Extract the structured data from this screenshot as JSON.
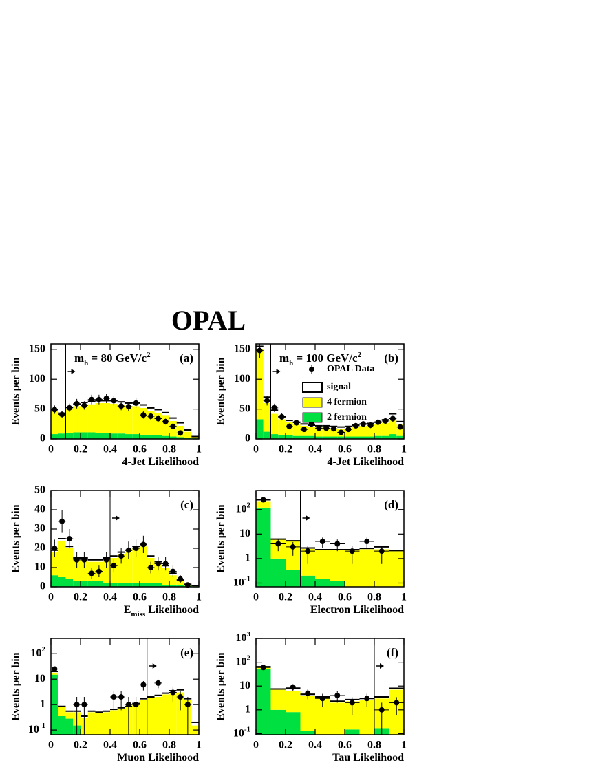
{
  "title": "OPAL",
  "chart_data": [
    {
      "type": "histogram",
      "panel_label": "(a)",
      "annotation": {
        "text": "m",
        "sub": "h",
        "rest": " = 80 GeV/c",
        "sup": "2"
      },
      "x_label": {
        "text": "4-Jet Likelihood"
      },
      "y_label": "Events per bin",
      "bins": [
        0,
        0.05,
        0.1,
        0.15,
        0.2,
        0.25,
        0.3,
        0.35,
        0.4,
        0.45,
        0.5,
        0.55,
        0.6,
        0.65,
        0.7,
        0.75,
        0.8,
        0.85,
        0.9,
        0.95,
        1
      ],
      "xlim": [
        0,
        1
      ],
      "xticks": [
        0,
        0.2,
        0.4,
        0.6,
        0.8,
        1
      ],
      "ylim": [
        0,
        159
      ],
      "yticks": [
        0,
        50,
        100,
        150
      ],
      "log_y": false,
      "cut": 0.1,
      "legend": false,
      "series": [
        {
          "name": "2 fermion",
          "color": "#00e040",
          "values": [
            8,
            9,
            10,
            11,
            11,
            11,
            10,
            10,
            9,
            9,
            8,
            8,
            7,
            7,
            6,
            5,
            4,
            3,
            2,
            1
          ]
        },
        {
          "name": "4 fermion",
          "color": "#ffff00",
          "values": [
            39,
            33,
            40,
            44,
            46,
            47,
            50,
            50,
            50,
            48,
            47,
            47,
            45,
            40,
            38,
            35,
            26,
            19,
            10,
            2
          ]
        },
        {
          "name": "signal",
          "color": "#ffffff",
          "outline": "#000000",
          "values": [
            2,
            1,
            3,
            3,
            4,
            5,
            4,
            4,
            5,
            5,
            5,
            5,
            5,
            5,
            5,
            4,
            5,
            5,
            3,
            1
          ]
        }
      ],
      "data": {
        "name": "OPAL Data",
        "values": [
          49,
          41,
          52,
          59,
          56,
          66,
          66,
          68,
          64,
          55,
          54,
          60,
          40,
          38,
          34,
          29,
          21,
          10,
          null,
          null
        ],
        "errors": [
          7,
          6,
          7,
          8,
          7,
          8,
          8,
          8,
          8,
          7,
          7,
          8,
          6,
          6,
          6,
          5,
          5,
          3,
          null,
          null
        ]
      }
    },
    {
      "type": "histogram",
      "panel_label": "(b)",
      "annotation": {
        "text": "m",
        "sub": "h",
        "rest": " = 100 GeV/c",
        "sup": "2"
      },
      "x_label": {
        "text": "4-Jet Likelihood"
      },
      "y_label": "Events per bin",
      "bins": [
        0,
        0.05,
        0.1,
        0.15,
        0.2,
        0.25,
        0.3,
        0.35,
        0.4,
        0.45,
        0.5,
        0.55,
        0.6,
        0.65,
        0.7,
        0.75,
        0.8,
        0.85,
        0.9,
        0.95,
        1
      ],
      "xlim": [
        0,
        1
      ],
      "xticks": [
        0,
        0.2,
        0.4,
        0.6,
        0.8,
        1
      ],
      "ylim": [
        0,
        159
      ],
      "yticks": [
        0,
        50,
        100,
        150
      ],
      "log_y": false,
      "cut": 0.1,
      "legend": true,
      "series": [
        {
          "name": "2 fermion",
          "color": "#00e040",
          "values": [
            33,
            12,
            8,
            7,
            6,
            5,
            5,
            5,
            4,
            4,
            4,
            4,
            4,
            4,
            4,
            4,
            5,
            5,
            8,
            5
          ]
        },
        {
          "name": "4 fermion",
          "color": "#ffff00",
          "values": [
            117,
            48,
            34,
            26,
            22,
            20,
            17,
            15,
            15,
            15,
            14,
            13,
            14,
            16,
            18,
            19,
            20,
            22,
            24,
            19
          ]
        },
        {
          "name": "signal",
          "color": "#ffffff",
          "outline": "#000000",
          "values": [
            5,
            10,
            6,
            4,
            3,
            3,
            3,
            3,
            3,
            3,
            3,
            3,
            3,
            3,
            3,
            3,
            3,
            5,
            10,
            5
          ]
        }
      ],
      "data": {
        "name": "OPAL Data",
        "values": [
          148,
          64,
          52,
          37,
          21,
          27,
          16,
          25,
          18,
          18,
          17,
          11,
          16,
          22,
          25,
          23,
          28,
          30,
          34,
          20
        ],
        "errors": [
          12,
          8,
          7,
          6,
          5,
          5,
          4,
          5,
          4,
          4,
          4,
          3,
          4,
          5,
          5,
          5,
          5,
          5,
          6,
          4
        ]
      }
    },
    {
      "type": "histogram",
      "panel_label": "(c)",
      "x_label": {
        "text": "E",
        "sub": "miss",
        "rest": " Likelihood"
      },
      "y_label": "Events per bin",
      "bins": [
        0,
        0.05,
        0.1,
        0.15,
        0.2,
        0.25,
        0.3,
        0.35,
        0.4,
        0.45,
        0.5,
        0.55,
        0.6,
        0.65,
        0.7,
        0.75,
        0.8,
        0.85,
        0.9,
        0.95,
        1
      ],
      "xlim": [
        0,
        1
      ],
      "xticks": [
        0,
        0.2,
        0.4,
        0.6,
        0.8,
        1
      ],
      "ylim": [
        0,
        50
      ],
      "yticks": [
        0,
        10,
        20,
        30,
        40,
        50
      ],
      "log_y": false,
      "cut": 0.4,
      "legend": false,
      "series": [
        {
          "name": "2 fermion",
          "color": "#00e040",
          "values": [
            6,
            5,
            4,
            3,
            3,
            3,
            3,
            2,
            2,
            2,
            2,
            2,
            2,
            2,
            2,
            1,
            1,
            1,
            0.5,
            0.3
          ]
        },
        {
          "name": "4 fermion",
          "color": "#ffff00",
          "values": [
            12,
            19,
            16,
            11,
            11,
            10,
            10,
            12,
            13,
            15,
            16,
            18,
            19,
            13,
            10,
            9,
            5,
            2,
            0.5,
            0.2
          ]
        },
        {
          "name": "signal",
          "color": "#ffffff",
          "outline": "#000000",
          "values": [
            1,
            1,
            1,
            1,
            1,
            1,
            1,
            1,
            1,
            1,
            1,
            1,
            1,
            1,
            1,
            1,
            1,
            0.5,
            0.3,
            0.2
          ]
        }
      ],
      "data": {
        "name": "OPAL Data",
        "values": [
          20,
          34,
          25,
          14,
          14,
          7,
          8,
          14,
          11,
          16,
          19,
          20,
          22,
          10,
          12,
          12,
          8,
          4,
          1,
          null
        ],
        "errors": [
          4.5,
          6,
          5,
          4,
          4,
          3,
          3,
          4,
          3.5,
          4,
          4.5,
          4.5,
          4.5,
          3,
          3.5,
          3.5,
          3,
          2,
          1,
          null
        ]
      }
    },
    {
      "type": "histogram",
      "panel_label": "(d)",
      "x_label": {
        "text": "Electron Likelihood"
      },
      "y_label": "Events per bin",
      "bins": [
        0,
        0.1,
        0.2,
        0.3,
        0.4,
        0.5,
        0.6,
        0.7,
        0.8,
        0.9,
        1
      ],
      "xlim": [
        0,
        1
      ],
      "xticks": [
        0,
        0.2,
        0.4,
        0.6,
        0.8,
        1
      ],
      "ylim": [
        0.07,
        600
      ],
      "yticks": [
        {
          "value": 0.1,
          "label": "10",
          "exponent": "-1"
        },
        1,
        10,
        {
          "value": 100,
          "label": "10",
          "exponent": "2"
        }
      ],
      "log_y": true,
      "cut": 0.3,
      "legend": false,
      "series": [
        {
          "name": "2 fermion",
          "color": "#00e040",
          "values": [
            120,
            1,
            0.35,
            0.2,
            0.15,
            0.12,
            0,
            0,
            0,
            0
          ]
        },
        {
          "name": "4 fermion",
          "color": "#ffff00",
          "values": [
            100,
            5,
            4.65,
            2.3,
            2.05,
            2.08,
            2.2,
            2.4,
            2.4,
            2
          ]
        },
        {
          "name": "signal",
          "color": "#ffffff",
          "outline": "#000000",
          "values": [
            30,
            0.2,
            0.3,
            0.2,
            0.1,
            0.1,
            0.1,
            0.2,
            0.6,
            0.1
          ]
        }
      ],
      "data": {
        "name": "OPAL Data",
        "values": [
          250,
          4,
          3,
          2,
          5,
          4,
          2,
          5,
          2,
          null
        ],
        "errors": [
          16,
          2,
          1.7,
          1.4,
          2.2,
          2,
          1.4,
          2.2,
          1.4,
          null
        ]
      }
    },
    {
      "type": "histogram",
      "panel_label": "(e)",
      "x_label": {
        "text": "Muon Likelihood"
      },
      "y_label": "Events per bin",
      "bins": [
        0,
        0.05,
        0.1,
        0.15,
        0.2,
        0.25,
        0.3,
        0.35,
        0.4,
        0.45,
        0.5,
        0.55,
        0.6,
        0.65,
        0.7,
        0.75,
        0.8,
        0.85,
        0.9,
        0.95,
        1
      ],
      "xlim": [
        0,
        1
      ],
      "xticks": [
        0,
        0.2,
        0.4,
        0.6,
        0.8,
        1
      ],
      "ylim": [
        0.065,
        400
      ],
      "yticks": [
        {
          "value": 0.1,
          "label": "10",
          "exponent": "-1"
        },
        1,
        10,
        {
          "value": 100,
          "label": "10",
          "exponent": "2"
        }
      ],
      "log_y": true,
      "cut": 0.65,
      "legend": false,
      "series": [
        {
          "name": "2 fermion",
          "color": "#00e040",
          "values": [
            15,
            0.35,
            0.28,
            0.15,
            0,
            0,
            0,
            0,
            0,
            0,
            0,
            0,
            0,
            0,
            0,
            0,
            0,
            0,
            0,
            0
          ]
        },
        {
          "name": "4 fermion",
          "color": "#ffff00",
          "values": [
            3,
            0.45,
            0.22,
            0.35,
            0.3,
            0.5,
            0.45,
            0.5,
            0.6,
            0.7,
            0.8,
            1,
            1.5,
            1.8,
            2,
            2.5,
            3,
            3,
            1.5,
            0.15
          ]
        },
        {
          "name": "signal",
          "color": "#ffffff",
          "outline": "#000000",
          "values": [
            2,
            0.05,
            0.05,
            0.05,
            0.05,
            0.05,
            0.05,
            0.05,
            0.05,
            0.05,
            0.05,
            0.1,
            0.2,
            0.2,
            0.3,
            0.3,
            0.5,
            0.8,
            0.2,
            0.05
          ]
        }
      ],
      "data": {
        "name": "OPAL Data",
        "values": [
          25,
          null,
          null,
          1,
          1,
          null,
          null,
          null,
          2,
          2,
          1,
          1,
          6,
          null,
          7,
          null,
          3,
          2,
          1,
          null
        ],
        "errors": [
          5,
          null,
          null,
          1,
          1,
          null,
          null,
          null,
          1.4,
          1.4,
          1,
          1,
          2.4,
          null,
          2.6,
          null,
          1.7,
          1.4,
          1,
          null
        ]
      }
    },
    {
      "type": "histogram",
      "panel_label": "(f)",
      "x_label": {
        "text": "Tau Likelihood"
      },
      "y_label": "Events per bin",
      "bins": [
        0,
        0.1,
        0.2,
        0.3,
        0.4,
        0.5,
        0.6,
        0.7,
        0.8,
        0.9,
        1
      ],
      "xlim": [
        0,
        1
      ],
      "xticks": [
        0,
        0.2,
        0.4,
        0.6,
        0.8,
        1
      ],
      "ylim": [
        0.09,
        1000
      ],
      "yticks": [
        {
          "value": 0.1,
          "label": "10",
          "exponent": "-1"
        },
        1,
        10,
        {
          "value": 100,
          "label": "10",
          "exponent": "2"
        },
        {
          "value": 1000,
          "label": "10",
          "exponent": "3"
        }
      ],
      "log_y": true,
      "cut": 0.8,
      "legend": false,
      "series": [
        {
          "name": "2 fermion",
          "color": "#00e040",
          "values": [
            50,
            1,
            0.8,
            0.13,
            0,
            0,
            0.15,
            0,
            0.17,
            0
          ]
        },
        {
          "name": "4 fermion",
          "color": "#ffff00",
          "values": [
            10,
            6,
            5.2,
            3.87,
            3,
            2,
            2.15,
            2.5,
            2.83,
            7
          ]
        },
        {
          "name": "signal",
          "color": "#ffffff",
          "outline": "#000000",
          "values": [
            5,
            0.5,
            2,
            0.5,
            0.5,
            0.3,
            0.4,
            0.5,
            0.5,
            1
          ]
        }
      ],
      "data": {
        "name": "OPAL Data",
        "values": [
          60,
          null,
          9,
          5,
          3,
          4,
          2,
          3,
          1,
          2
        ],
        "errors": [
          8,
          null,
          3,
          2.2,
          1.7,
          2,
          1.4,
          1.7,
          1,
          1.4
        ]
      }
    }
  ]
}
